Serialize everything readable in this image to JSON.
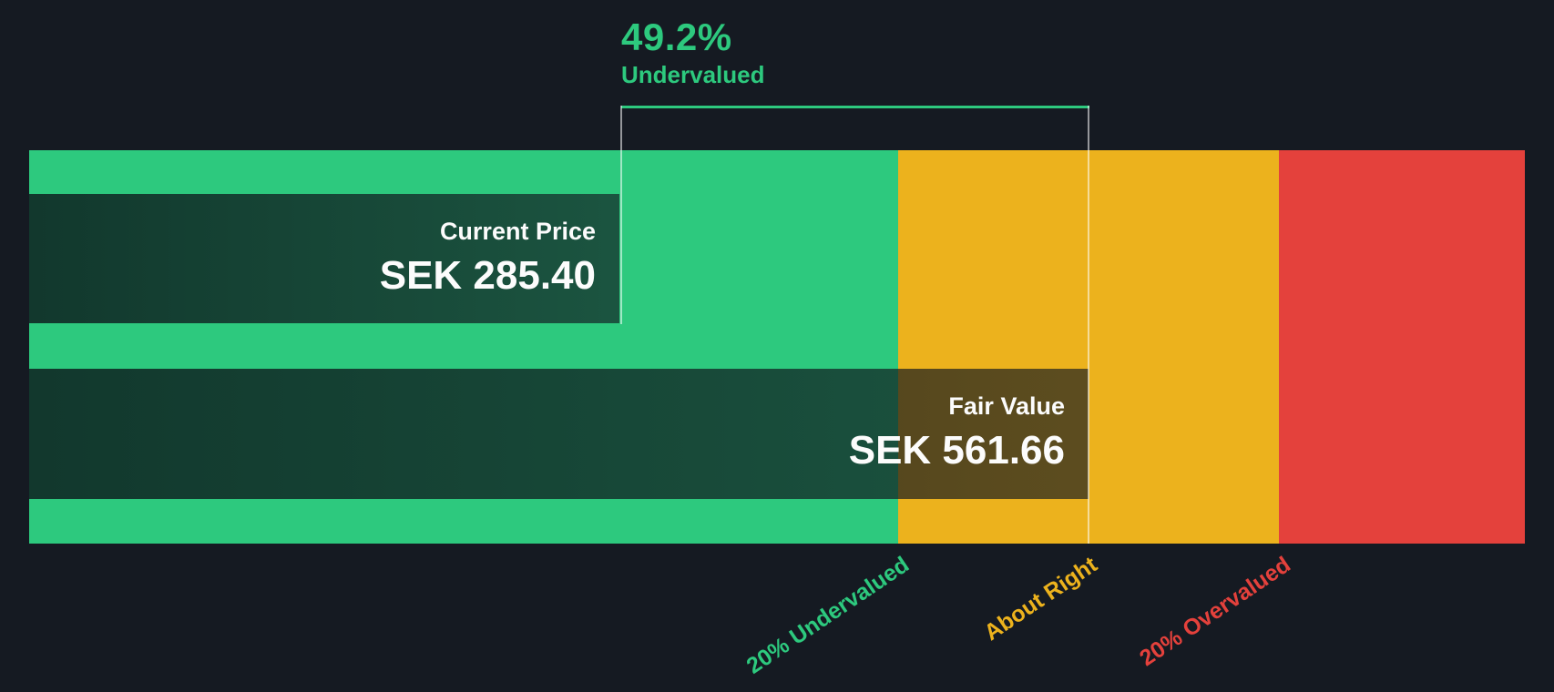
{
  "chart_data": {
    "type": "bar",
    "subtype": "share-price-vs-fair-value-gauge",
    "discount": {
      "percent": "49.2%",
      "label": "Undervalued"
    },
    "current_price": {
      "label": "Current Price",
      "value": "SEK 285.40"
    },
    "fair_value": {
      "label": "Fair Value",
      "value": "SEK 561.66"
    },
    "currency": "SEK",
    "values": {
      "current_price": 285.4,
      "fair_value": 561.66,
      "discount_pct": 49.2
    },
    "zones": [
      {
        "label": "20% Undervalued",
        "color": "#2dc97e"
      },
      {
        "label": "About Right",
        "color": "#ecb21d"
      },
      {
        "label": "20% Overvalued",
        "color": "#e4413c"
      }
    ],
    "layout_hints": {
      "legend_position": "none",
      "grid": false,
      "about_right_range": "fair value ±20%"
    }
  },
  "colors": {
    "background": "#151a22",
    "undervalued_green": "#2dc97e",
    "about_right_amber": "#ecb21d",
    "overvalued_red": "#e4413c",
    "bracket_green": "#2dc97e",
    "marker_line": "rgba(255,255,255,0.55)",
    "bar_text": "#fcfcfc"
  }
}
